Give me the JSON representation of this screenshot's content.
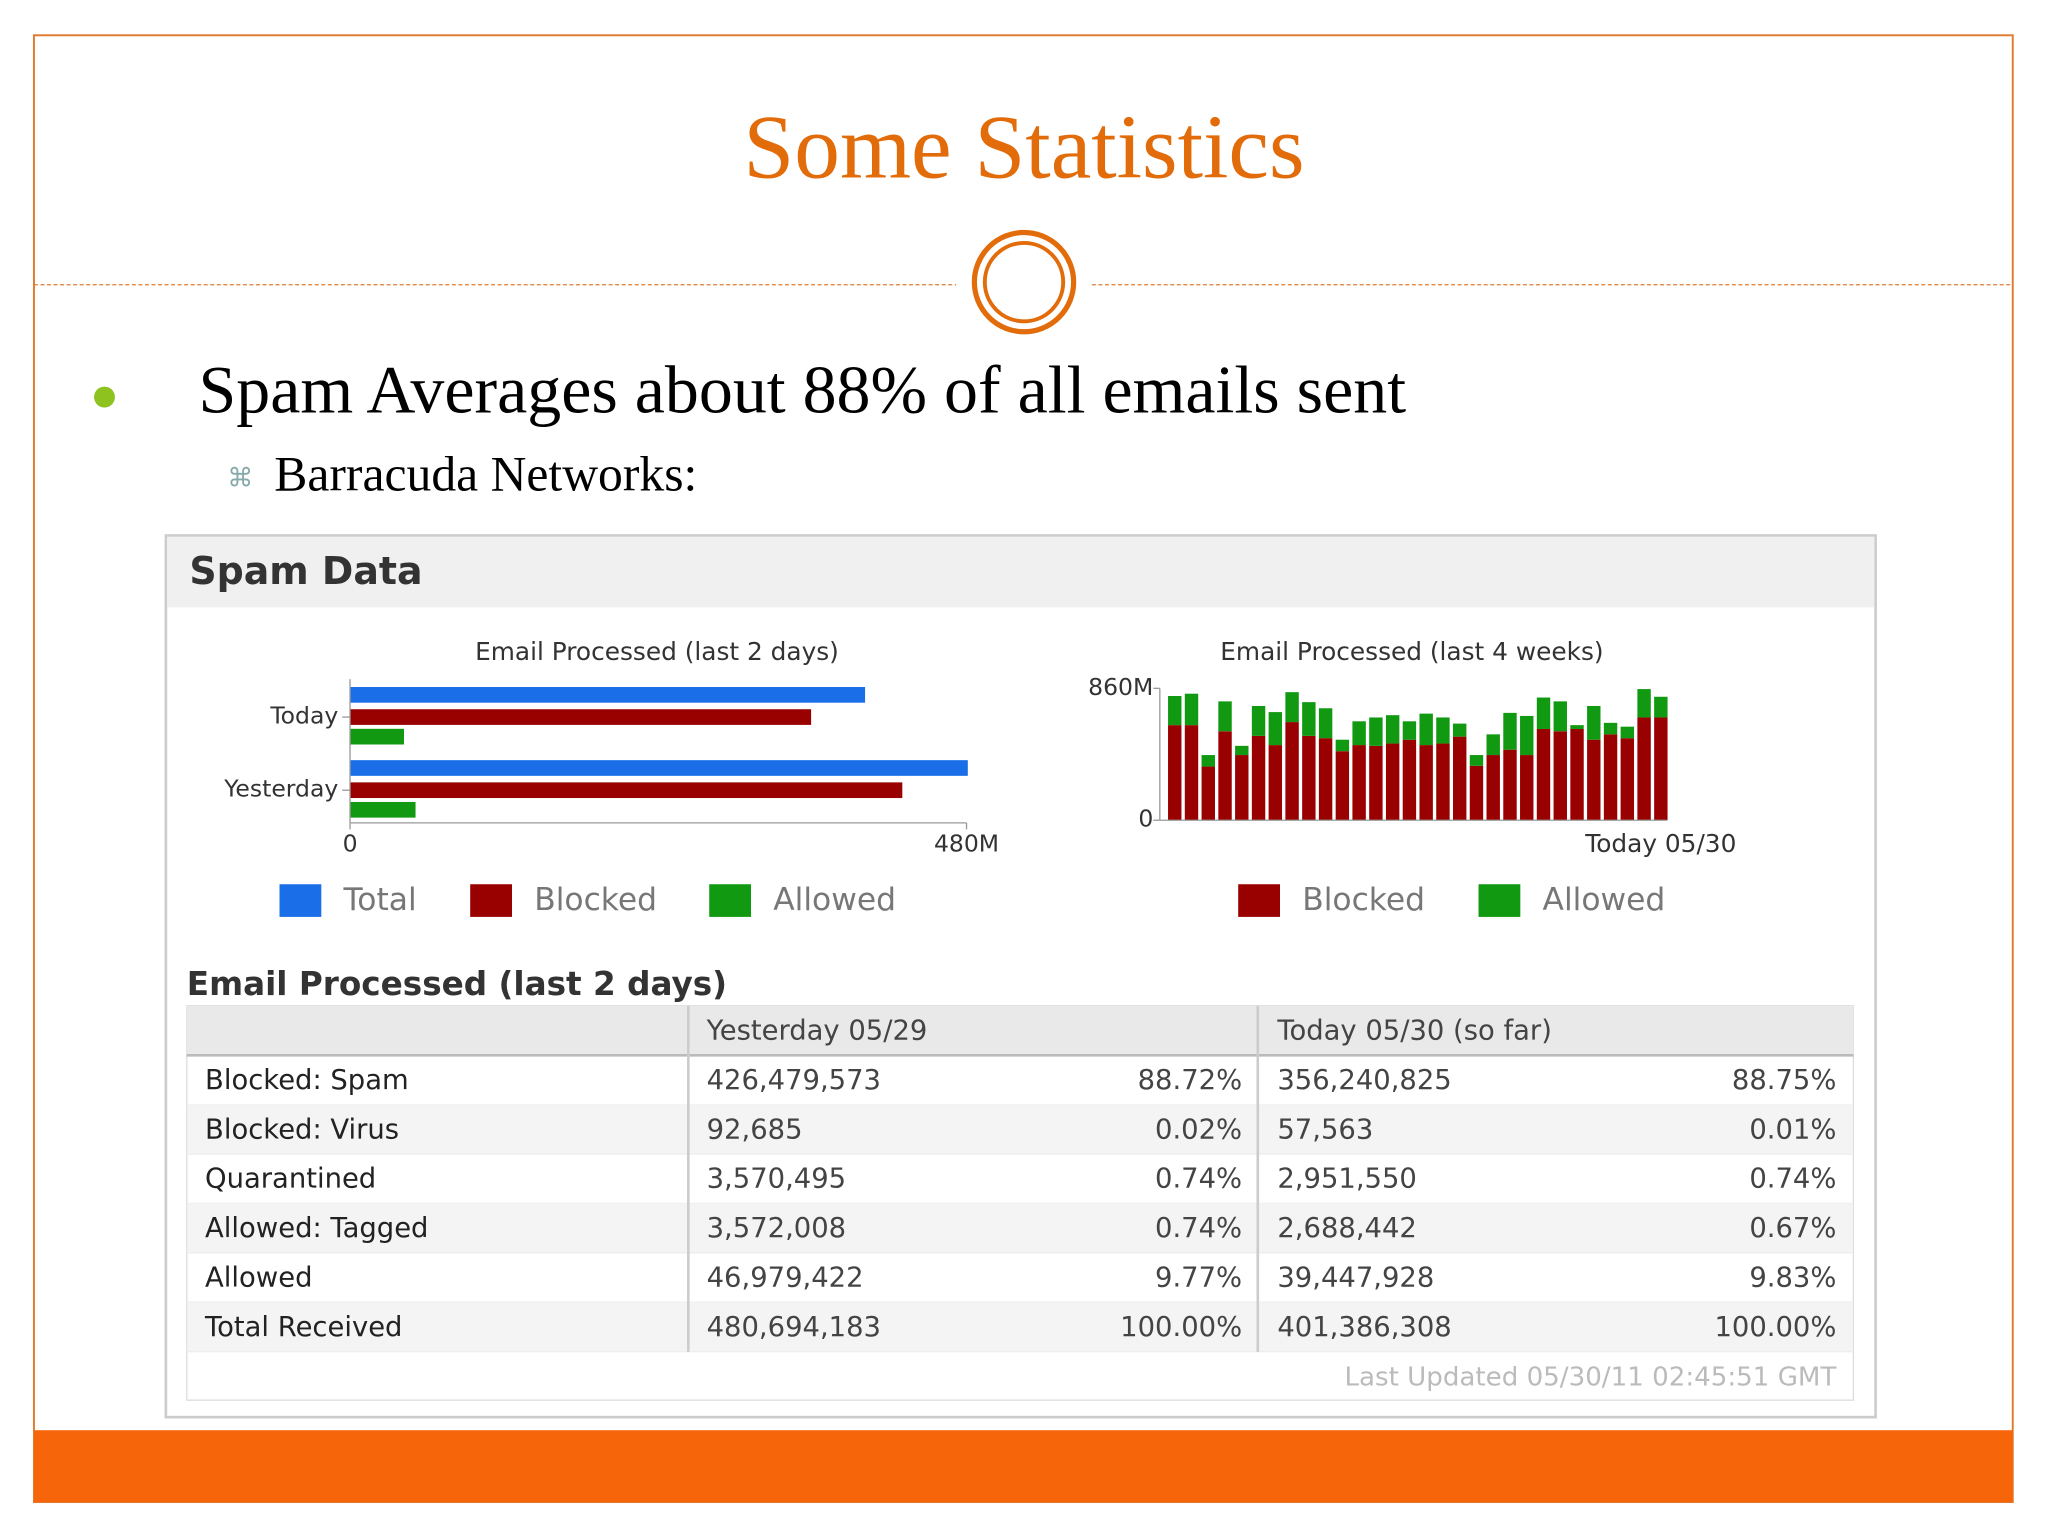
{
  "slide": {
    "title": "Some Statistics",
    "bullet": "Spam Averages about 88% of all emails sent",
    "sub_bullet": "Barracuda Networks:"
  },
  "panel": {
    "title": "Spam Data"
  },
  "chart_data": [
    {
      "type": "hbar",
      "title": "Email Processed (last 2 days)",
      "categories": [
        "Today",
        "Yesterday"
      ],
      "series": [
        {
          "name": "Total",
          "color": "#1a6ee8",
          "values": [
            401,
            481
          ]
        },
        {
          "name": "Blocked",
          "color": "#990000",
          "values": [
            359,
            430
          ]
        },
        {
          "name": "Allowed",
          "color": "#119911",
          "values": [
            42,
            51
          ]
        }
      ],
      "xlim": [
        0,
        480
      ],
      "xticks": [
        0,
        {
          "value": 480,
          "label": "480M"
        }
      ]
    },
    {
      "type": "stacked_bar",
      "title": "Email Processed (last 4 weeks)",
      "categories": [
        null,
        null,
        null,
        null,
        null,
        null,
        null,
        null,
        null,
        null,
        null,
        null,
        null,
        null,
        null,
        null,
        null,
        null,
        null,
        null,
        null,
        null,
        null,
        null,
        null,
        null,
        null,
        null,
        null,
        "Today 05/30"
      ],
      "series": [
        {
          "name": "Blocked",
          "color": "#990000",
          "values": [
            620,
            620,
            350,
            580,
            425,
            550,
            490,
            640,
            550,
            535,
            450,
            490,
            485,
            500,
            525,
            490,
            500,
            545,
            355,
            425,
            460,
            425,
            595,
            580,
            595,
            525,
            560,
            535,
            670,
            670
          ]
        },
        {
          "name": "Allowed",
          "color": "#119911",
          "values": [
            190,
            205,
            75,
            195,
            60,
            195,
            215,
            195,
            220,
            195,
            75,
            155,
            185,
            185,
            120,
            205,
            170,
            85,
            70,
            135,
            240,
            255,
            205,
            195,
            25,
            220,
            75,
            75,
            185,
            135
          ]
        }
      ],
      "ylim": [
        0,
        860
      ],
      "yticks": [
        0,
        {
          "value": 860,
          "label": "860M"
        }
      ]
    }
  ],
  "table": {
    "title": "Email Processed (last 2 days)",
    "header": [
      "Yesterday 05/29",
      "Today 05/30 (so far)"
    ],
    "rows": [
      [
        "Blocked: Spam",
        "426,479,573",
        "88.72%",
        "356,240,825",
        "88.75%"
      ],
      [
        "Blocked: Virus",
        "92,685",
        "0.02%",
        "57,563",
        "0.01%"
      ],
      [
        "Quarantined",
        "3,570,495",
        "0.74%",
        "2,951,550",
        "0.74%"
      ],
      [
        "Allowed: Tagged",
        "3,572,008",
        "0.74%",
        "2,688,442",
        "0.67%"
      ],
      [
        "Allowed",
        "46,979,422",
        "9.77%",
        "39,447,928",
        "9.83%"
      ],
      [
        "Total Received",
        "480,694,183",
        "100.00%",
        "401,386,308",
        "100.00%"
      ]
    ],
    "footer": "Last Updated 05/30/11 02:45:51 GMT"
  }
}
